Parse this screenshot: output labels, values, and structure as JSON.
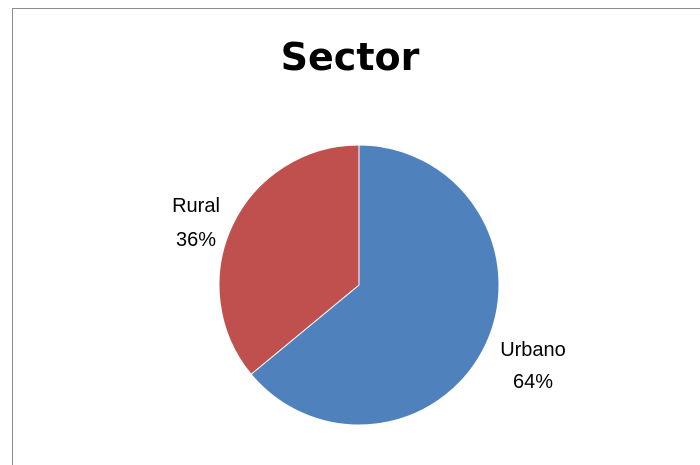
{
  "chart_data": {
    "type": "pie",
    "title": "Sector",
    "slices": [
      {
        "label": "Urbano",
        "value": 64,
        "value_label": "64%",
        "color": "#4f81bd"
      },
      {
        "label": "Rural",
        "value": 36,
        "value_label": "36%",
        "color": "#c0504d"
      }
    ],
    "legend": "none",
    "data_labels": "outside"
  }
}
